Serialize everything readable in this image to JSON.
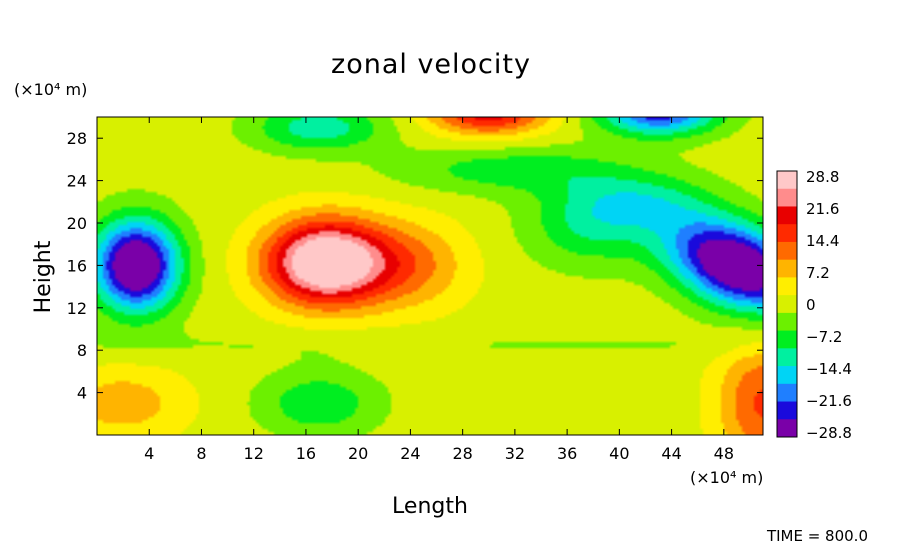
{
  "chart_data": {
    "type": "heatmap",
    "title": "zonal velocity",
    "xlabel": "Length",
    "ylabel": "Height",
    "x_units": "(×10⁴ m)",
    "y_units": "(×10⁴ m)",
    "xlim": [
      0,
      51
    ],
    "ylim": [
      0,
      30
    ],
    "xticks": [
      4,
      8,
      12,
      16,
      20,
      24,
      28,
      32,
      36,
      40,
      44,
      48
    ],
    "yticks": [
      4,
      8,
      12,
      16,
      20,
      24,
      28
    ],
    "x_tick_labels": [
      "4",
      "8",
      "12",
      "16",
      "20",
      "24",
      "28",
      "32",
      "36",
      "40",
      "44",
      "48"
    ],
    "y_tick_labels": [
      "4",
      "8",
      "12",
      "16",
      "20",
      "24",
      "28"
    ],
    "colorbar": {
      "min": -28.8,
      "max": 28.8,
      "labels": [
        "28.8",
        "21.6",
        "14.4",
        "7.2",
        "0",
        "−7.2",
        "−14.4",
        "−21.6",
        "−28.8"
      ],
      "colors": [
        "#7a00a8",
        "#1a0adc",
        "#1f7fff",
        "#00d4f5",
        "#00f0a0",
        "#00ee20",
        "#6cf000",
        "#d8f000",
        "#ffee00",
        "#ffb400",
        "#ff6a00",
        "#ff2a00",
        "#e80000",
        "#ff8c8c",
        "#ffc8c8"
      ]
    },
    "features": [
      {
        "kind": "min",
        "x": 3,
        "y": 16,
        "value": -28.8
      },
      {
        "kind": "max",
        "x": 17.5,
        "y": 16.5,
        "value": 28.8
      },
      {
        "kind": "min",
        "x": 48,
        "y": 16,
        "value": -28.8
      },
      {
        "kind": "max",
        "x": 30,
        "y": 30,
        "value": 18
      },
      {
        "kind": "min",
        "x": 43,
        "y": 30,
        "value": -22
      },
      {
        "kind": "min",
        "x": 17,
        "y": 29,
        "value": -11
      },
      {
        "kind": "min",
        "x": 17,
        "y": 3,
        "value": -9
      },
      {
        "kind": "max",
        "x": 51,
        "y": 3,
        "value": 12
      },
      {
        "kind": "max",
        "x": 3,
        "y": 3,
        "value": 7
      }
    ],
    "annotation": "TIME = 800.0"
  }
}
